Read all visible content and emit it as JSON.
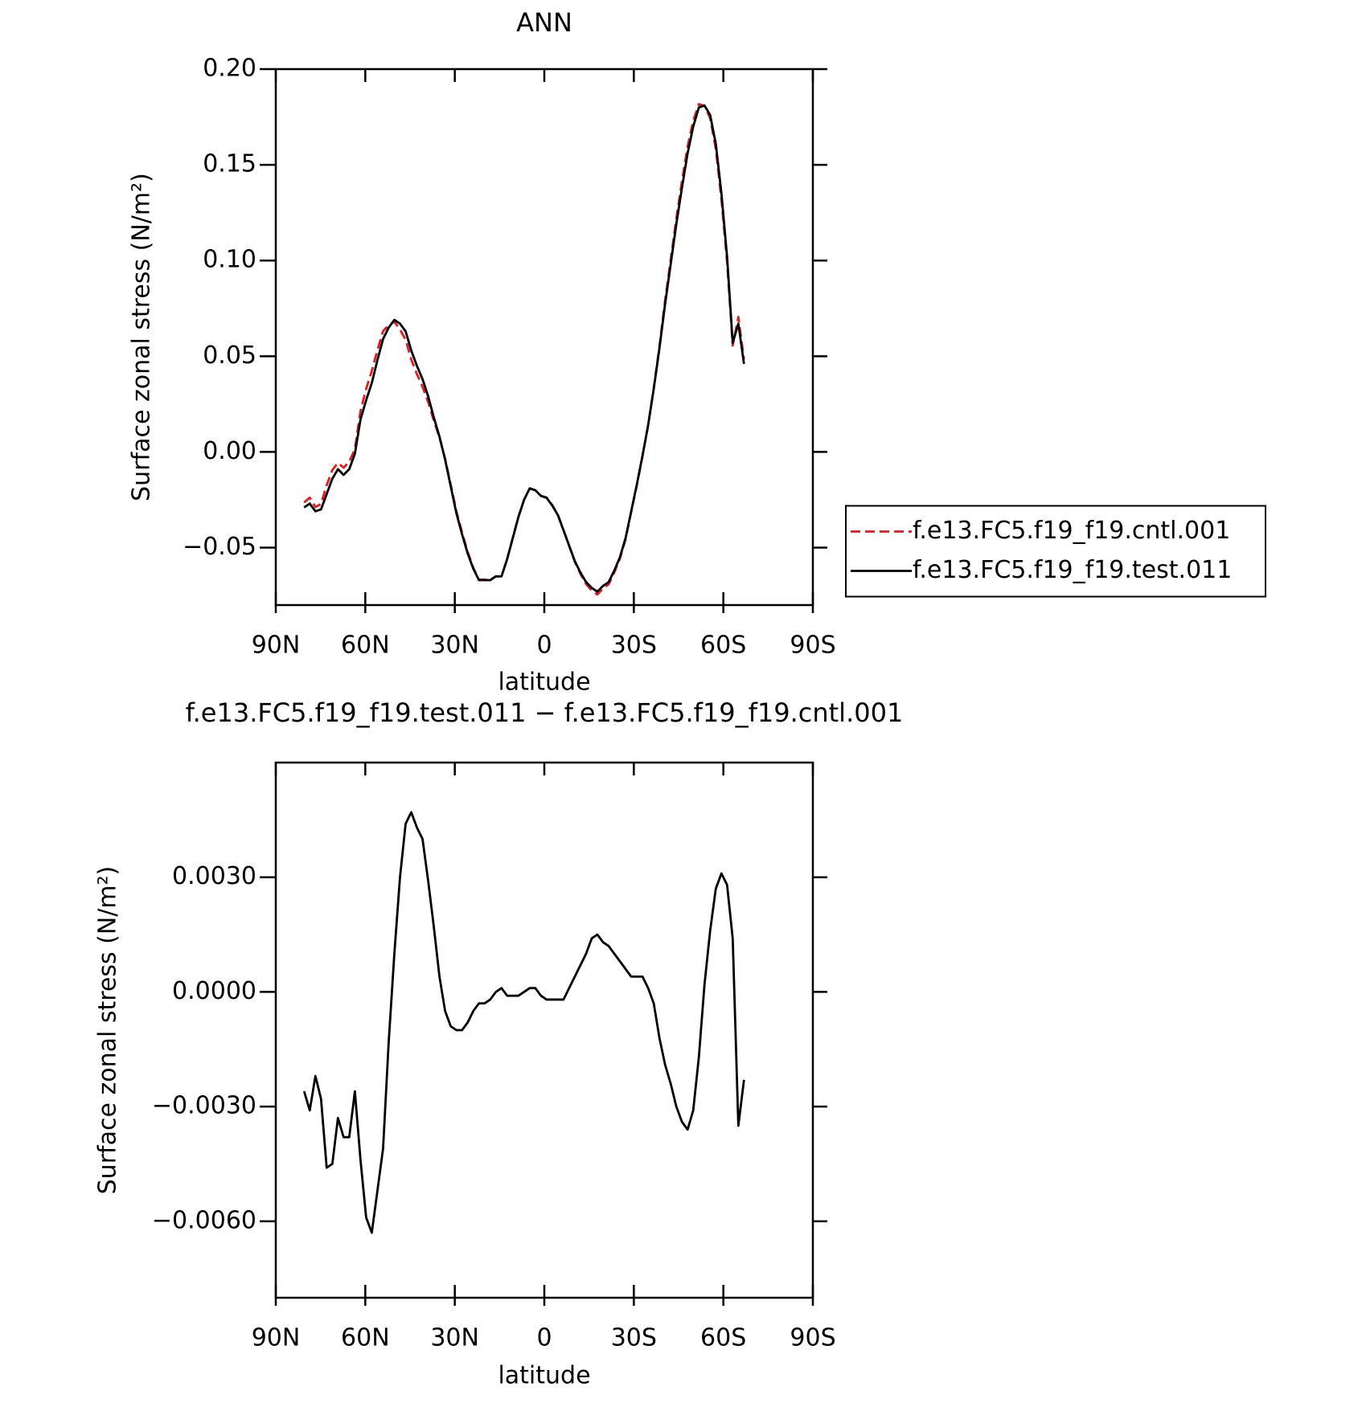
{
  "chart_data": [
    {
      "type": "line",
      "title": "ANN",
      "x_label": "latitude",
      "y_label": "Surface zonal stress (N/m²)",
      "x": [
        80.5,
        78.61,
        76.72,
        74.83,
        72.94,
        71.05,
        69.16,
        67.27,
        65.38,
        63.49,
        61.6,
        59.71,
        57.82,
        55.93,
        54.04,
        52.15,
        50.26,
        48.37,
        46.48,
        44.59,
        42.7,
        40.81,
        38.92,
        37.03,
        35.14,
        33.25,
        31.36,
        29.47,
        27.58,
        25.69,
        23.8,
        21.91,
        20.02,
        18.13,
        16.24,
        14.35,
        12.46,
        10.57,
        8.68,
        6.79,
        4.9,
        3.01,
        1.12,
        -0.77,
        -2.66,
        -4.55,
        -6.44,
        -8.33,
        -10.22,
        -12.11,
        -14,
        -15.89,
        -17.78,
        -19.67,
        -21.56,
        -23.45,
        -25.34,
        -27.23,
        -29.12,
        -31.01,
        -32.9,
        -34.79,
        -36.68,
        -38.57,
        -40.46,
        -42.35,
        -44.24,
        -46.13,
        -48.02,
        -49.91,
        -51.8,
        -53.69,
        -55.58,
        -57.47,
        -59.36,
        -61.25,
        -63.14,
        -65.03,
        -66.92
      ],
      "series": [
        {
          "name": "f.e13.FC5.f19_f19.cntl.001",
          "color": "#e41a1c",
          "linestyle": "dashed",
          "values": [
            -0.0264,
            -0.0239,
            -0.0288,
            -0.0272,
            -0.0174,
            -0.0095,
            -0.0057,
            -0.0082,
            -0.0052,
            0.0016,
            0.0214,
            0.0329,
            0.0423,
            0.0532,
            0.0631,
            0.0663,
            0.068,
            0.064,
            0.0586,
            0.0483,
            0.0407,
            0.034,
            0.0261,
            0.0163,
            0.0076,
            -0.0035,
            -0.0171,
            -0.031,
            -0.042,
            -0.0522,
            -0.0605,
            -0.0667,
            -0.0667,
            -0.0668,
            -0.065,
            -0.0651,
            -0.0559,
            -0.0449,
            -0.0339,
            -0.025,
            -0.0191,
            -0.0201,
            -0.0229,
            -0.0238,
            -0.0278,
            -0.0328,
            -0.0408,
            -0.0491,
            -0.0574,
            -0.0637,
            -0.069,
            -0.0724,
            -0.0745,
            -0.0713,
            -0.0692,
            -0.063,
            -0.0558,
            -0.0456,
            -0.0314,
            -0.0174,
            -0.0024,
            0.0139,
            0.0333,
            0.0552,
            0.0789,
            0.1004,
            0.122,
            0.1414,
            0.1596,
            0.1731,
            0.1817,
            0.1808,
            0.1744,
            0.1583,
            0.1319,
            0.0992,
            0.0556,
            0.0705,
            0.0483
          ]
        },
        {
          "name": "f.e13.FC5.f19_f19.test.011",
          "color": "#000000",
          "linestyle": "solid",
          "values": [
            -0.029,
            -0.027,
            -0.031,
            -0.03,
            -0.022,
            -0.014,
            -0.009,
            -0.012,
            -0.009,
            -0.001,
            0.017,
            0.027,
            0.036,
            0.048,
            0.059,
            0.065,
            0.069,
            0.067,
            0.063,
            0.053,
            0.045,
            0.038,
            0.029,
            0.018,
            0.008,
            -0.004,
            -0.018,
            -0.032,
            -0.043,
            -0.053,
            -0.061,
            -0.067,
            -0.067,
            -0.067,
            -0.065,
            -0.065,
            -0.056,
            -0.045,
            -0.034,
            -0.025,
            -0.019,
            -0.02,
            -0.023,
            -0.024,
            -0.028,
            -0.033,
            -0.041,
            -0.049,
            -0.057,
            -0.063,
            -0.068,
            -0.071,
            -0.073,
            -0.07,
            -0.068,
            -0.062,
            -0.055,
            -0.045,
            -0.031,
            -0.017,
            -0.002,
            0.014,
            0.033,
            0.054,
            0.077,
            0.098,
            0.119,
            0.138,
            0.156,
            0.17,
            0.18,
            0.181,
            0.176,
            0.161,
            0.135,
            0.102,
            0.057,
            0.067,
            0.046
          ]
        }
      ],
      "xlim": [
        90,
        -90
      ],
      "xticks": [
        {
          "value": 90,
          "label": "90N"
        },
        {
          "value": 60,
          "label": "60N"
        },
        {
          "value": 30,
          "label": "30N"
        },
        0,
        {
          "value": -30,
          "label": "30S"
        },
        {
          "value": -60,
          "label": "60S"
        },
        {
          "value": -90,
          "label": "90S"
        }
      ],
      "ylim": [
        -0.08,
        0.2
      ],
      "yticks": [
        {
          "value": 0.2,
          "label": "0.20"
        },
        0.15,
        {
          "value": 0.1,
          "label": "0.10"
        },
        0.05,
        {
          "value": 0,
          "label": "0.00"
        },
        {
          "value": -0.05,
          "label": "−0.05"
        }
      ],
      "legend": "right"
    },
    {
      "type": "line",
      "title": "f.e13.FC5.f19_f19.test.011 − f.e13.FC5.f19_f19.cntl.001",
      "x_label": "latitude",
      "y_label": "Surface zonal stress (N/m²)",
      "x": [
        80.5,
        78.61,
        76.72,
        74.83,
        72.94,
        71.05,
        69.16,
        67.27,
        65.38,
        63.49,
        61.6,
        59.71,
        57.82,
        55.93,
        54.04,
        52.15,
        50.26,
        48.37,
        46.48,
        44.59,
        42.7,
        40.81,
        38.92,
        37.03,
        35.14,
        33.25,
        31.36,
        29.47,
        27.58,
        25.69,
        23.8,
        21.91,
        20.02,
        18.13,
        16.24,
        14.35,
        12.46,
        10.57,
        8.68,
        6.79,
        4.9,
        3.01,
        1.12,
        -0.77,
        -2.66,
        -4.55,
        -6.44,
        -8.33,
        -10.22,
        -12.11,
        -14,
        -15.89,
        -17.78,
        -19.67,
        -21.56,
        -23.45,
        -25.34,
        -27.23,
        -29.12,
        -31.01,
        -32.9,
        -34.79,
        -36.68,
        -38.57,
        -40.46,
        -42.35,
        -44.24,
        -46.13,
        -48.02,
        -49.91,
        -51.8,
        -53.69,
        -55.58,
        -57.47,
        -59.36,
        -61.25,
        -63.14,
        -65.03,
        -66.92
      ],
      "series": [
        {
          "color": "#000000",
          "linestyle": "solid",
          "values": [
            -0.0026,
            -0.0031,
            -0.0022,
            -0.0028,
            -0.0046,
            -0.0045,
            -0.0033,
            -0.0038,
            -0.0038,
            -0.0026,
            -0.0044,
            -0.0059,
            -0.0063,
            -0.0052,
            -0.0041,
            -0.0013,
            0.001,
            0.003,
            0.0044,
            0.0047,
            0.0043,
            0.004,
            0.0029,
            0.0017,
            0.0004,
            -0.0005,
            -0.0009,
            -0.001,
            -0.001,
            -0.0008,
            -0.0005,
            -0.0003,
            -0.0003,
            -0.0002,
            0,
            0.0001,
            -0.0001,
            -0.0001,
            -0.0001,
            0,
            0.0001,
            0.0001,
            -0.0001,
            -0.0002,
            -0.0002,
            -0.0002,
            -0.0002,
            0.0001,
            0.0004,
            0.0007,
            0.001,
            0.0014,
            0.0015,
            0.0013,
            0.0012,
            0.001,
            0.0008,
            0.0006,
            0.0004,
            0.0004,
            0.0004,
            0.0001,
            -0.0003,
            -0.0012,
            -0.0019,
            -0.0024,
            -0.003,
            -0.0034,
            -0.0036,
            -0.0031,
            -0.0017,
            0.0002,
            0.0016,
            0.0027,
            0.0031,
            0.0028,
            0.0014,
            -0.0035,
            -0.0023
          ]
        }
      ],
      "xlim": [
        90,
        -90
      ],
      "xticks": [
        {
          "value": 90,
          "label": "90N"
        },
        {
          "value": 60,
          "label": "60N"
        },
        {
          "value": 30,
          "label": "30N"
        },
        0,
        {
          "value": -30,
          "label": "30S"
        },
        {
          "value": -60,
          "label": "60S"
        },
        {
          "value": -90,
          "label": "90S"
        }
      ],
      "ylim": [
        -0.008,
        0.006
      ],
      "yticks": [
        {
          "value": 0.003,
          "label": "0.0030"
        },
        {
          "value": 0,
          "label": "0.0000"
        },
        {
          "value": -0.003,
          "label": "−0.0030"
        },
        {
          "value": -0.006,
          "label": "−0.0060"
        }
      ]
    }
  ]
}
